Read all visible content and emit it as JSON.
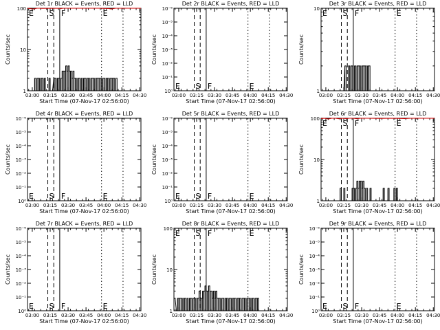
{
  "figure": {
    "x_tick_labels": [
      "03:00",
      "03:15",
      "03:30",
      "03:45",
      "04:00",
      "04:15",
      "04:30"
    ],
    "x_range_minutes": [
      0,
      95
    ],
    "xlabel": "Start Time (07-Nov-17 02:56:00)",
    "ylabel": "Counts/sec",
    "markers": [
      {
        "label": "S",
        "x_min": 17.0,
        "style": "dashed"
      },
      {
        "label": "",
        "x_min": 22.0,
        "style": "dashed"
      },
      {
        "label": "F",
        "x_min": 27.0,
        "style": "solid"
      },
      {
        "label": "E",
        "x_min": 62.0,
        "style": "dotted"
      },
      {
        "label": "",
        "x_min": 80.0,
        "style": "dotted"
      }
    ]
  },
  "colors": {
    "events": "#000000",
    "lld": "#cc0000"
  },
  "chart_data": [
    {
      "type": "line",
      "title": "Det 1r BLACK = Events, RED = LLD",
      "scale": "lin",
      "y_ticks": [
        "1",
        "10",
        "100"
      ],
      "lld": [
        [
          0,
          100
        ],
        [
          2,
          98
        ],
        [
          5,
          96
        ],
        [
          8,
          100
        ],
        [
          10,
          100
        ],
        [
          12,
          99
        ],
        [
          26,
          100
        ],
        [
          28,
          98
        ],
        [
          30,
          100
        ],
        [
          35,
          100
        ],
        [
          45,
          100
        ],
        [
          60,
          100
        ],
        [
          68,
          98
        ],
        [
          70,
          96
        ],
        [
          72,
          98
        ],
        [
          74,
          100
        ],
        [
          95,
          100
        ]
      ],
      "events": [
        [
          5,
          1
        ],
        [
          6,
          2
        ],
        [
          7,
          1
        ],
        [
          8,
          2
        ],
        [
          9,
          2
        ],
        [
          10,
          1
        ],
        [
          11,
          2
        ],
        [
          12,
          2
        ],
        [
          13,
          1
        ],
        [
          14,
          2
        ],
        [
          15,
          1
        ],
        [
          16,
          1
        ],
        [
          17,
          1
        ],
        [
          18,
          2
        ],
        [
          19,
          1
        ],
        [
          20,
          1
        ],
        [
          22,
          2
        ],
        [
          23,
          2
        ],
        [
          24,
          1
        ],
        [
          25,
          2
        ],
        [
          26,
          2
        ],
        [
          27,
          1
        ],
        [
          28,
          2
        ],
        [
          29,
          3
        ],
        [
          30,
          3
        ],
        [
          31,
          3
        ],
        [
          32,
          4
        ],
        [
          33,
          3
        ],
        [
          34,
          4
        ],
        [
          35,
          3
        ],
        [
          36,
          3
        ],
        [
          37,
          2
        ],
        [
          38,
          3
        ],
        [
          39,
          2
        ],
        [
          40,
          2
        ],
        [
          41,
          1
        ],
        [
          42,
          2
        ],
        [
          43,
          2
        ],
        [
          44,
          1
        ],
        [
          45,
          2
        ],
        [
          46,
          1
        ],
        [
          47,
          2
        ],
        [
          48,
          2
        ],
        [
          49,
          1
        ],
        [
          50,
          2
        ],
        [
          51,
          2
        ],
        [
          52,
          1
        ],
        [
          53,
          2
        ],
        [
          54,
          2
        ],
        [
          55,
          2
        ],
        [
          56,
          1
        ],
        [
          57,
          2
        ],
        [
          58,
          2
        ],
        [
          59,
          2
        ],
        [
          60,
          2
        ],
        [
          61,
          2
        ],
        [
          62,
          1
        ],
        [
          63,
          2
        ],
        [
          64,
          2
        ],
        [
          65,
          1
        ],
        [
          66,
          2
        ],
        [
          67,
          2
        ],
        [
          68,
          1
        ],
        [
          69,
          2
        ],
        [
          70,
          2
        ],
        [
          71,
          2
        ],
        [
          72,
          2
        ],
        [
          73,
          1
        ],
        [
          74,
          2
        ]
      ]
    },
    {
      "type": "line",
      "title": "Det 2r BLACK = Events, RED = LLD",
      "scale": "empty",
      "y_ticks": [
        "10⁰",
        "10⁻¹",
        "10⁻²",
        "10⁻³",
        "10⁻⁴",
        "10⁻⁵",
        "10⁻⁶"
      ],
      "lld": [],
      "events": []
    },
    {
      "type": "line",
      "title": "Det 3r BLACK = Events, RED = LLD",
      "scale": "lin",
      "y_ticks": [
        "1",
        "10"
      ],
      "lld": [],
      "events": [
        [
          17,
          1
        ],
        [
          18,
          1
        ],
        [
          20,
          2
        ],
        [
          21,
          1
        ],
        [
          22,
          1
        ],
        [
          23,
          2
        ],
        [
          24,
          1
        ],
        [
          25,
          2
        ],
        [
          26,
          2
        ],
        [
          27,
          1
        ],
        [
          28,
          2
        ],
        [
          29,
          1
        ],
        [
          30,
          2
        ],
        [
          31,
          2
        ],
        [
          32,
          2
        ],
        [
          33,
          1
        ],
        [
          34,
          2
        ],
        [
          35,
          2
        ],
        [
          36,
          2
        ],
        [
          37,
          2
        ],
        [
          38,
          1
        ],
        [
          39,
          2
        ],
        [
          40,
          2
        ]
      ]
    },
    {
      "type": "line",
      "title": "Det 4r BLACK = Events, RED = LLD",
      "scale": "empty",
      "y_ticks": [
        "10⁰",
        "10⁻¹",
        "10⁻²",
        "10⁻³",
        "10⁻⁴",
        "10⁻⁵",
        "10⁻⁶"
      ],
      "lld": [],
      "events": []
    },
    {
      "type": "line",
      "title": "Det 5r BLACK = Events, RED = LLD",
      "scale": "empty",
      "y_ticks": [
        "10⁰",
        "10⁻¹",
        "10⁻²",
        "10⁻³",
        "10⁻⁴",
        "10⁻⁵",
        "10⁻⁶"
      ],
      "lld": [],
      "events": []
    },
    {
      "type": "line",
      "title": "Det 6r BLACK = Events, RED = LLD",
      "scale": "lin",
      "y_ticks": [
        "1",
        "10",
        "100"
      ],
      "lld": [
        [
          0,
          98
        ],
        [
          3,
          100
        ],
        [
          6,
          96
        ],
        [
          9,
          100
        ],
        [
          12,
          100
        ],
        [
          15,
          97
        ],
        [
          18,
          100
        ],
        [
          21,
          98
        ],
        [
          24,
          100
        ],
        [
          27,
          100
        ],
        [
          30,
          97
        ],
        [
          33,
          100
        ],
        [
          40,
          100
        ],
        [
          50,
          99
        ],
        [
          60,
          100
        ],
        [
          70,
          98
        ],
        [
          75,
          100
        ],
        [
          95,
          100
        ]
      ],
      "events": [
        [
          15,
          1
        ],
        [
          16,
          2
        ],
        [
          17,
          1
        ],
        [
          18,
          1
        ],
        [
          19,
          2
        ],
        [
          20,
          1
        ],
        [
          25,
          1
        ],
        [
          26,
          2
        ],
        [
          27,
          2
        ],
        [
          28,
          1
        ],
        [
          29,
          2
        ],
        [
          30,
          3
        ],
        [
          31,
          2
        ],
        [
          32,
          3
        ],
        [
          33,
          3
        ],
        [
          34,
          2
        ],
        [
          35,
          3
        ],
        [
          36,
          2
        ],
        [
          37,
          1
        ],
        [
          38,
          2
        ],
        [
          39,
          1
        ],
        [
          40,
          1
        ],
        [
          41,
          2
        ],
        [
          42,
          1
        ],
        [
          43,
          1
        ],
        [
          50,
          1
        ],
        [
          51,
          1
        ],
        [
          52,
          2
        ],
        [
          53,
          1
        ],
        [
          54,
          1
        ],
        [
          55,
          1
        ],
        [
          56,
          2
        ],
        [
          57,
          1
        ],
        [
          58,
          1
        ],
        [
          59,
          1
        ],
        [
          60,
          1
        ],
        [
          61,
          2
        ],
        [
          62,
          1
        ],
        [
          63,
          2
        ],
        [
          64,
          1
        ]
      ]
    },
    {
      "type": "line",
      "title": "Det 7r BLACK = Events, RED = LLD",
      "scale": "empty",
      "y_ticks": [
        "10⁰",
        "10⁻¹",
        "10⁻²",
        "10⁻³",
        "10⁻⁴",
        "10⁻⁵",
        "10⁻⁶"
      ],
      "lld": [],
      "events": []
    },
    {
      "type": "line",
      "title": "Det 8r BLACK = Events, RED = LLD",
      "scale": "lin",
      "y_ticks": [
        "1",
        "10",
        "100"
      ],
      "lld": [],
      "events": [
        [
          0,
          2
        ],
        [
          2,
          1
        ],
        [
          3,
          2
        ],
        [
          4,
          2
        ],
        [
          5,
          2
        ],
        [
          6,
          2
        ],
        [
          7,
          1
        ],
        [
          8,
          2
        ],
        [
          9,
          2
        ],
        [
          10,
          1
        ],
        [
          11,
          2
        ],
        [
          12,
          1
        ],
        [
          13,
          2
        ],
        [
          14,
          2
        ],
        [
          15,
          1
        ],
        [
          16,
          2
        ],
        [
          17,
          2
        ],
        [
          18,
          1
        ],
        [
          19,
          2
        ],
        [
          20,
          2
        ],
        [
          21,
          3
        ],
        [
          22,
          2
        ],
        [
          23,
          2
        ],
        [
          24,
          3
        ],
        [
          25,
          3
        ],
        [
          26,
          4
        ],
        [
          27,
          3
        ],
        [
          28,
          3
        ],
        [
          29,
          4
        ],
        [
          30,
          3
        ],
        [
          31,
          3
        ],
        [
          32,
          2
        ],
        [
          33,
          3
        ],
        [
          34,
          2
        ],
        [
          35,
          3
        ],
        [
          36,
          2
        ],
        [
          37,
          2
        ],
        [
          38,
          2
        ],
        [
          39,
          1
        ],
        [
          40,
          2
        ],
        [
          41,
          2
        ],
        [
          42,
          1
        ],
        [
          43,
          2
        ],
        [
          44,
          2
        ],
        [
          45,
          1
        ],
        [
          46,
          2
        ],
        [
          47,
          2
        ],
        [
          48,
          1
        ],
        [
          49,
          2
        ],
        [
          50,
          2
        ],
        [
          51,
          2
        ],
        [
          52,
          1
        ],
        [
          53,
          2
        ],
        [
          54,
          2
        ],
        [
          55,
          2
        ],
        [
          56,
          1
        ],
        [
          57,
          2
        ],
        [
          58,
          2
        ],
        [
          59,
          2
        ],
        [
          60,
          1
        ],
        [
          61,
          2
        ],
        [
          62,
          2
        ],
        [
          63,
          2
        ],
        [
          64,
          1
        ],
        [
          65,
          2
        ],
        [
          66,
          2
        ],
        [
          67,
          1
        ],
        [
          68,
          2
        ],
        [
          69,
          2
        ],
        [
          70,
          2
        ]
      ]
    },
    {
      "type": "line",
      "title": "Det 9r BLACK = Events, RED = LLD",
      "scale": "empty",
      "y_ticks": [
        "10⁰",
        "10⁻¹",
        "10⁻²",
        "10⁻³",
        "10⁻⁴",
        "10⁻⁵",
        "10⁻⁶"
      ],
      "lld": [],
      "events": []
    }
  ]
}
